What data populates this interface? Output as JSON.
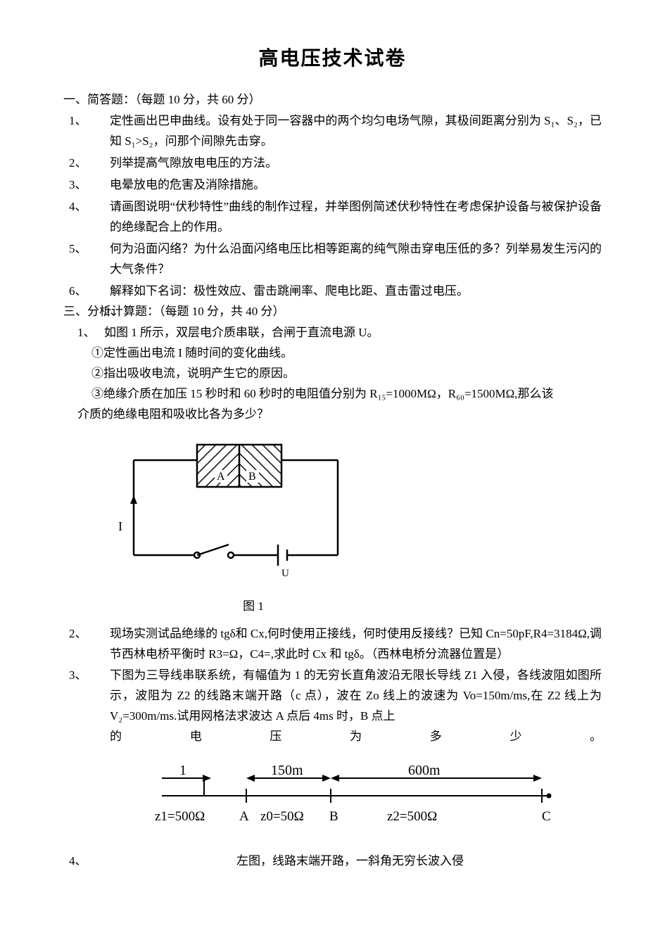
{
  "title": "高电压技术试卷",
  "section1": {
    "heading": "一、简答题：（每题 10 分，共 60 分）",
    "items": [
      {
        "num": "1、",
        "text": "定性画出巴申曲线。设有处于同一容器中的两个均匀电场气隙，其极间距离分别为 S₁、S₂，已知 S₁>S₂，问那个间隙先击穿。"
      },
      {
        "num": "2、",
        "text": "列举提高气隙放电电压的方法。"
      },
      {
        "num": "3、",
        "text": "电晕放电的危害及消除措施。"
      },
      {
        "num": "4、",
        "text": "请画图说明“伏秒特性”曲线的制作过程，并举图例简述伏秒特性在考虑保护设备与被保护设备的绝缘配合上的作用。"
      },
      {
        "num": "5、",
        "text": "何为沿面闪络？为什么沿面闪络电压比相等距离的纯气隙击穿电压低的多？列举易发生污闪的大气条件？"
      },
      {
        "num": "6、",
        "text": "解释如下名词：极性效应、雷击跳闸率、爬电比距、直击雷过电压。"
      }
    ]
  },
  "section2": {
    "left_marker": "2、",
    "heading": "三、分析计算题：（每题 10 分，共 40 分）",
    "q1": {
      "num": "1、",
      "lead": "如图 1 所示，双层电介质串联，合闸于直流电源 U。",
      "l1": "①定性画出电流 I 随时间的变化曲线。",
      "l2": "②指出吸收电流，说明产生它的原因。",
      "l3a": "③绝缘介质在加压 15 秒时和 60 秒时的电阻值分别为 R₁₅=1000MΩ，R₆₀=1500MΩ,那么该",
      "l3b": "介质的绝缘电阻和吸收比各为多少？"
    },
    "fig1": {
      "caption": "图 1",
      "labelA": "A",
      "labelB": "B",
      "labelI": "I",
      "labelU": "U",
      "stroke": "#000000",
      "hatch": "#000000",
      "bg": "#ffffff"
    },
    "q2": {
      "num": "2、",
      "text": "现场实测试品绝缘的 tgδ和 Cx,何时使用正接线，何时使用反接线？已知 Cn=50pF,R4=3184Ω,调节西林电桥平衡时 R3=Ω，C4=,求此时 Cx 和 tgδ。（西林电桥分流器位置是）"
    },
    "q3": {
      "num": "3、",
      "text_a": "下图为三导线串联系统，有幅值为 1 的无穷长直角波沿无限长导线 Z1 入侵，各线波阻如图所示，波阻为 Z2 的线路末端开路（c 点），波在 Zo 线上的波速为 Vo=150m/ms,在 Z2 线上为 V₂=300m/ms.试用网格法求波达 A 点后 4ms 时，B 点上",
      "text_b_words": [
        "的",
        "电",
        "压",
        "为",
        "多",
        "少",
        "。"
      ]
    },
    "fig2": {
      "one": "1",
      "d150": "150m",
      "d600": "600m",
      "z1": "z1=500Ω",
      "A": "A",
      "z0": "z0=50Ω",
      "B": "B",
      "z2": "z2=500Ω",
      "C": "C",
      "stroke": "#000000"
    },
    "q4": {
      "num": "4、",
      "text": "左图，线路末端开路，一斜角无穷长波入侵"
    }
  }
}
